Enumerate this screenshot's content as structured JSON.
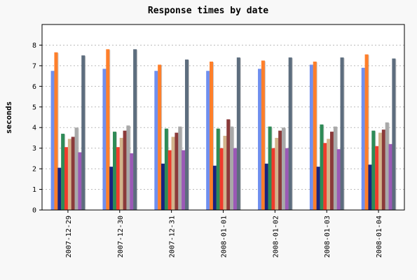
{
  "chart_data": {
    "type": "bar",
    "title": "Response times by date",
    "xlabel": "",
    "ylabel": "seconds",
    "ylim": [
      0,
      9
    ],
    "yticks": [
      0,
      1,
      2,
      3,
      4,
      5,
      6,
      7,
      8
    ],
    "grid": true,
    "categories": [
      "2007-12-29",
      "2007-12-30",
      "2007-12-31",
      "2008-01-01",
      "2008-01-02",
      "2008-01-03",
      "2008-01-04"
    ],
    "series": [
      {
        "color": "#6f8fef",
        "values": [
          6.75,
          6.85,
          6.75,
          6.75,
          6.85,
          7.05,
          6.9
        ]
      },
      {
        "color": "#ff7f2a",
        "values": [
          7.65,
          7.8,
          7.05,
          7.2,
          7.25,
          7.2,
          7.55
        ]
      },
      {
        "color": "#1a237e",
        "values": [
          2.05,
          2.1,
          2.25,
          2.15,
          2.25,
          2.1,
          2.2
        ]
      },
      {
        "color": "#2e8b57",
        "values": [
          3.7,
          3.8,
          3.95,
          3.95,
          4.05,
          4.15,
          3.85
        ]
      },
      {
        "color": "#ef3b2c",
        "values": [
          3.05,
          3.05,
          2.9,
          3.0,
          3.0,
          3.25,
          3.1
        ]
      },
      {
        "color": "#d2b48c",
        "values": [
          3.45,
          3.5,
          3.55,
          3.6,
          3.5,
          3.45,
          3.75
        ]
      },
      {
        "color": "#8b3a3a",
        "values": [
          3.55,
          3.85,
          3.75,
          4.4,
          3.85,
          3.8,
          3.9
        ]
      },
      {
        "color": "#a9a9a9",
        "values": [
          4.0,
          4.1,
          4.05,
          4.05,
          4.0,
          4.05,
          4.25
        ]
      },
      {
        "color": "#9b59b6",
        "values": [
          2.8,
          2.75,
          2.9,
          3.0,
          3.0,
          2.95,
          3.2
        ]
      },
      {
        "color": "#5d6d7e",
        "values": [
          7.5,
          7.8,
          7.3,
          7.4,
          7.4,
          7.4,
          7.35
        ]
      }
    ]
  }
}
